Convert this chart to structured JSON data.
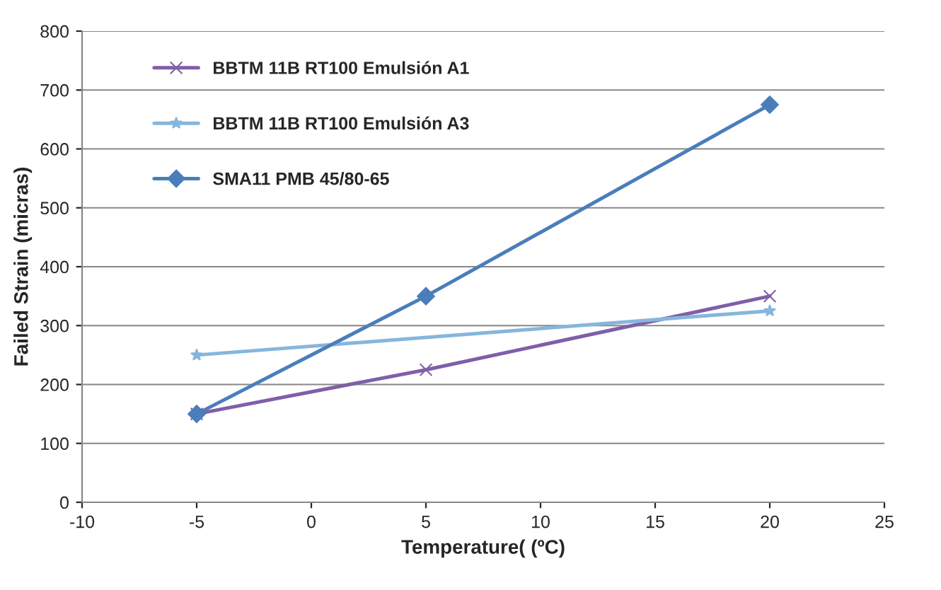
{
  "chart_data": {
    "type": "line",
    "xlabel": "Temperature( (ºC)",
    "ylabel": "Failed Strain (micras)",
    "xlim": [
      -10,
      25
    ],
    "xticks": [
      -10,
      -5,
      0,
      5,
      10,
      15,
      20,
      25
    ],
    "ylim": [
      0,
      800
    ],
    "yticks": [
      0,
      100,
      200,
      300,
      400,
      500,
      600,
      700,
      800
    ],
    "grid": "y",
    "legend": "top left",
    "series": [
      {
        "name": "BBTM 11B RT100 Emulsión A1",
        "color": "#7f5fa8",
        "marker": "cross",
        "x": [
          -5,
          5,
          20
        ],
        "values": [
          150,
          225,
          350
        ]
      },
      {
        "name": "BBTM 11B RT100 Emulsión A3",
        "color": "#86b6dc",
        "marker": "star",
        "x": [
          -5,
          20
        ],
        "values": [
          250,
          325
        ]
      },
      {
        "name": "SMA11 PMB 45/80-65",
        "color": "#4a7ebb",
        "marker": "diamond",
        "x": [
          -5,
          5,
          20
        ],
        "values": [
          150,
          350,
          675
        ]
      }
    ]
  }
}
